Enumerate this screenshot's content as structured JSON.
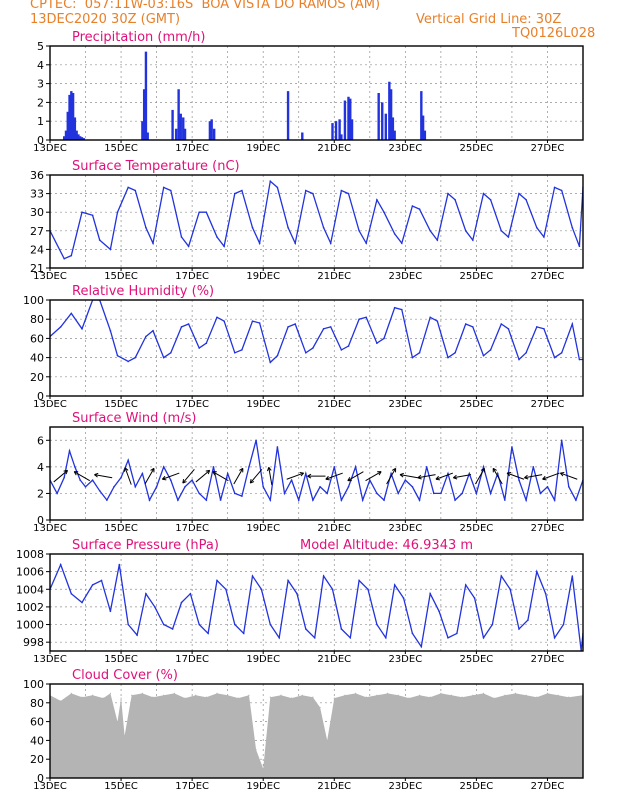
{
  "header": {
    "line1_left": "CPTEC:  057:11W-03:16S  BOA VISTA DO RAMOS (AM)",
    "line2_left": "13DEC2020 30Z (GMT)",
    "line2_right": "Vertical Grid Line: 30Z",
    "line3_right": "TQ0126L028"
  },
  "colors": {
    "header": "#e8802a",
    "title": "#e0117a",
    "line": "#2233dd",
    "cloud": "#b4b4b4"
  },
  "chart_data": [
    {
      "type": "bar",
      "title": "Precipitation (mm/h)",
      "ylim": [
        0,
        5
      ],
      "yticks": [
        "0",
        "1",
        "2",
        "3",
        "4",
        "5"
      ],
      "xticks": [
        "13DEC",
        "15DEC",
        "17DEC",
        "19DEC",
        "21DEC",
        "23DEC",
        "25DEC",
        "27DEC"
      ],
      "x_start": "13DEC2020 06Z",
      "x_end": "28DEC2020 06Z",
      "x": [
        13.4,
        13.45,
        13.5,
        13.55,
        13.6,
        13.65,
        13.7,
        13.75,
        13.8,
        13.85,
        13.9,
        13.95,
        15.6,
        15.65,
        15.7,
        15.75,
        16.45,
        16.55,
        16.62,
        16.68,
        16.75,
        16.8,
        17.5,
        17.55,
        17.62,
        19.7,
        20.1,
        20.95,
        21.05,
        21.15,
        21.2,
        21.3,
        21.4,
        21.45,
        21.5,
        22.25,
        22.35,
        22.45,
        22.55,
        22.6,
        22.65,
        22.7,
        23.45,
        23.5,
        23.55
      ],
      "values": [
        0.2,
        0.5,
        1.5,
        2.4,
        2.6,
        2.5,
        1.2,
        0.5,
        0.3,
        0.2,
        0.15,
        0.1,
        1.0,
        2.7,
        4.7,
        0.4,
        1.6,
        0.6,
        2.7,
        1.4,
        1.2,
        0.6,
        1.0,
        1.1,
        0.6,
        2.6,
        0.4,
        0.9,
        1.0,
        1.1,
        0.3,
        2.1,
        2.3,
        2.2,
        1.1,
        2.5,
        2.0,
        1.4,
        3.1,
        2.7,
        1.2,
        0.5,
        2.6,
        1.3,
        0.5
      ]
    },
    {
      "type": "line",
      "title": "Surface Temperature (nC)",
      "ylim": [
        21,
        36
      ],
      "yticks": [
        "21",
        "24",
        "27",
        "30",
        "33",
        "36"
      ],
      "xticks": [
        "13DEC",
        "15DEC",
        "17DEC",
        "19DEC",
        "21DEC",
        "23DEC",
        "25DEC",
        "27DEC"
      ],
      "x": [
        13.0,
        13.4,
        13.6,
        13.9,
        14.2,
        14.4,
        14.7,
        14.9,
        15.2,
        15.4,
        15.7,
        15.9,
        16.2,
        16.4,
        16.7,
        16.9,
        17.2,
        17.4,
        17.7,
        17.9,
        18.2,
        18.4,
        18.7,
        18.9,
        19.2,
        19.4,
        19.7,
        19.9,
        20.2,
        20.4,
        20.7,
        20.9,
        21.2,
        21.4,
        21.7,
        21.9,
        22.2,
        22.4,
        22.7,
        22.9,
        23.2,
        23.4,
        23.7,
        23.9,
        24.2,
        24.4,
        24.7,
        24.9,
        25.2,
        25.4,
        25.7,
        25.9,
        26.2,
        26.4,
        26.7,
        26.9,
        27.2,
        27.4,
        27.7,
        27.9,
        28.0
      ],
      "values": [
        27.0,
        22.5,
        23.0,
        30.0,
        29.5,
        25.5,
        24.0,
        30.0,
        34.0,
        33.5,
        27.5,
        25.0,
        34.0,
        33.5,
        26.0,
        24.5,
        30.0,
        30.0,
        26.0,
        24.5,
        33.0,
        33.5,
        27.5,
        25.0,
        35.0,
        34.0,
        27.5,
        25.0,
        33.5,
        33.0,
        27.5,
        25.0,
        33.5,
        33.0,
        27.0,
        25.0,
        32.0,
        30.0,
        26.5,
        25.0,
        31.0,
        30.5,
        27.0,
        25.5,
        33.0,
        32.0,
        27.0,
        25.5,
        33.0,
        32.0,
        27.0,
        26.0,
        33.0,
        32.0,
        27.5,
        26.0,
        34.0,
        33.5,
        27.5,
        24.5,
        34.0
      ]
    },
    {
      "type": "line",
      "title": "Relative Humidity (%)",
      "ylim": [
        0,
        100
      ],
      "yticks": [
        "0",
        "20",
        "40",
        "60",
        "80",
        "100"
      ],
      "xticks": [
        "13DEC",
        "15DEC",
        "17DEC",
        "19DEC",
        "21DEC",
        "23DEC",
        "25DEC",
        "27DEC"
      ],
      "x": [
        13.0,
        13.3,
        13.6,
        13.9,
        14.2,
        14.4,
        14.7,
        14.9,
        15.2,
        15.4,
        15.7,
        15.9,
        16.2,
        16.4,
        16.7,
        16.9,
        17.2,
        17.4,
        17.7,
        17.9,
        18.2,
        18.4,
        18.7,
        18.9,
        19.2,
        19.4,
        19.7,
        19.9,
        20.2,
        20.4,
        20.7,
        20.9,
        21.2,
        21.4,
        21.7,
        21.9,
        22.2,
        22.4,
        22.7,
        22.9,
        23.2,
        23.4,
        23.7,
        23.9,
        24.2,
        24.4,
        24.7,
        24.9,
        25.2,
        25.4,
        25.7,
        25.9,
        26.2,
        26.4,
        26.7,
        26.9,
        27.2,
        27.4,
        27.7,
        27.9,
        28.0
      ],
      "values": [
        62,
        72,
        86,
        70,
        100,
        100,
        68,
        42,
        36,
        40,
        62,
        68,
        40,
        45,
        72,
        75,
        50,
        55,
        82,
        78,
        45,
        48,
        78,
        76,
        35,
        42,
        72,
        75,
        45,
        50,
        70,
        72,
        48,
        52,
        80,
        82,
        55,
        60,
        92,
        90,
        40,
        45,
        82,
        78,
        40,
        45,
        75,
        72,
        42,
        48,
        75,
        70,
        38,
        45,
        72,
        70,
        40,
        45,
        75,
        38,
        38
      ]
    },
    {
      "type": "line",
      "title": "Surface Wind (m/s)",
      "ylim": [
        0,
        7
      ],
      "yticks": [
        "0",
        "2",
        "4",
        "6"
      ],
      "xticks": [
        "13DEC",
        "15DEC",
        "17DEC",
        "19DEC",
        "21DEC",
        "23DEC",
        "25DEC",
        "27DEC"
      ],
      "x": [
        13.0,
        13.2,
        13.4,
        13.55,
        13.7,
        13.85,
        14.0,
        14.2,
        14.4,
        14.6,
        14.8,
        15.0,
        15.2,
        15.4,
        15.6,
        15.8,
        16.0,
        16.2,
        16.4,
        16.6,
        16.8,
        17.0,
        17.2,
        17.4,
        17.6,
        17.8,
        18.0,
        18.2,
        18.4,
        18.6,
        18.8,
        19.0,
        19.2,
        19.4,
        19.6,
        19.8,
        20.0,
        20.2,
        20.4,
        20.6,
        20.8,
        21.0,
        21.2,
        21.4,
        21.6,
        21.8,
        22.0,
        22.2,
        22.4,
        22.6,
        22.8,
        23.0,
        23.2,
        23.4,
        23.6,
        23.8,
        24.0,
        24.2,
        24.4,
        24.6,
        24.8,
        25.0,
        25.2,
        25.4,
        25.6,
        25.8,
        26.0,
        26.2,
        26.4,
        26.6,
        26.8,
        27.0,
        27.2,
        27.4,
        27.6,
        27.8,
        28.0
      ],
      "values": [
        3.0,
        2.0,
        3.2,
        5.2,
        4.0,
        3.0,
        2.5,
        3.0,
        2.2,
        1.5,
        2.5,
        3.2,
        4.5,
        2.5,
        3.5,
        1.5,
        2.5,
        4.0,
        3.0,
        1.5,
        2.5,
        3.0,
        2.0,
        1.5,
        4.0,
        1.5,
        3.5,
        2.0,
        1.8,
        4.0,
        6.0,
        2.5,
        1.5,
        5.5,
        2.0,
        3.0,
        1.5,
        3.5,
        1.5,
        2.5,
        2.0,
        4.0,
        1.5,
        2.5,
        4.0,
        1.5,
        3.0,
        2.0,
        1.5,
        3.5,
        2.0,
        3.0,
        2.5,
        1.5,
        4.0,
        2.0,
        2.0,
        3.5,
        1.5,
        2.0,
        3.5,
        2.0,
        4.0,
        2.0,
        3.5,
        1.5,
        5.5,
        3.0,
        1.5,
        4.0,
        2.0,
        2.5,
        1.5,
        6.0,
        2.5,
        1.5,
        3.0
      ],
      "arrows_x": [
        13.3,
        13.9,
        14.5,
        15.2,
        15.8,
        16.4,
        16.9,
        17.3,
        17.8,
        18.3,
        18.8,
        19.2,
        19.9,
        20.5,
        21.0,
        21.6,
        22.1,
        22.6,
        23.1,
        23.6,
        24.1,
        24.6,
        25.1,
        25.6,
        26.1,
        26.6,
        27.1,
        27.6
      ],
      "arrows_dir_deg": [
        40,
        150,
        170,
        110,
        60,
        200,
        230,
        40,
        150,
        60,
        230,
        100,
        20,
        180,
        200,
        210,
        30,
        60,
        170,
        190,
        200,
        190,
        60,
        120,
        160,
        190,
        200,
        160
      ]
    },
    {
      "type": "line",
      "title": "Surface Pressure (hPa)",
      "annotation": "Model Altitude: 46.9343 m",
      "ylim": [
        997,
        1008
      ],
      "yticks": [
        "998",
        "1000",
        "1002",
        "1004",
        "1006",
        "1008"
      ],
      "xticks": [
        "13DEC",
        "15DEC",
        "17DEC",
        "19DEC",
        "21DEC",
        "23DEC",
        "25DEC",
        "27DEC"
      ],
      "x": [
        13.0,
        13.3,
        13.6,
        13.9,
        14.2,
        14.45,
        14.7,
        14.95,
        15.2,
        15.45,
        15.7,
        15.95,
        16.2,
        16.45,
        16.7,
        16.95,
        17.2,
        17.45,
        17.7,
        17.95,
        18.2,
        18.45,
        18.7,
        18.95,
        19.2,
        19.45,
        19.7,
        19.95,
        20.2,
        20.45,
        20.7,
        20.95,
        21.2,
        21.45,
        21.7,
        21.95,
        22.2,
        22.45,
        22.7,
        22.95,
        23.2,
        23.45,
        23.7,
        23.95,
        24.2,
        24.45,
        24.7,
        24.95,
        25.2,
        25.45,
        25.7,
        25.95,
        26.2,
        26.45,
        26.7,
        26.95,
        27.2,
        27.45,
        27.7,
        27.95,
        28.0
      ],
      "values": [
        1004.0,
        1006.8,
        1003.5,
        1002.5,
        1004.5,
        1005.0,
        1001.5,
        1006.8,
        1000.0,
        998.8,
        1003.5,
        1002.0,
        1000.0,
        999.5,
        1002.5,
        1003.5,
        1000.0,
        999.0,
        1005.0,
        1004.0,
        1000.0,
        999.0,
        1005.5,
        1004.0,
        1000.0,
        998.5,
        1005.0,
        1003.5,
        999.5,
        998.5,
        1005.5,
        1004.0,
        999.5,
        998.5,
        1005.0,
        1004.0,
        1000.0,
        998.5,
        1004.5,
        1003.0,
        999.0,
        997.5,
        1003.5,
        1001.5,
        998.5,
        999.0,
        1004.5,
        1003.0,
        998.5,
        1000.0,
        1005.5,
        1004.0,
        999.5,
        1000.5,
        1006.0,
        1003.5,
        998.5,
        1000.0,
        1005.5,
        997.0,
        999.0
      ]
    },
    {
      "type": "area",
      "title": "Cloud Cover (%)",
      "ylim": [
        0,
        100
      ],
      "yticks": [
        "0",
        "20",
        "40",
        "60",
        "80",
        "100"
      ],
      "xticks": [
        "13DEC",
        "15DEC",
        "17DEC",
        "19DEC",
        "21DEC",
        "23DEC",
        "25DEC",
        "27DEC"
      ],
      "x": [
        13.0,
        13.3,
        13.6,
        13.9,
        14.2,
        14.5,
        14.7,
        14.9,
        15.0,
        15.1,
        15.3,
        15.6,
        15.9,
        16.2,
        16.5,
        16.8,
        17.1,
        17.4,
        17.7,
        18.0,
        18.3,
        18.6,
        18.8,
        19.0,
        19.2,
        19.5,
        19.8,
        20.1,
        20.4,
        20.6,
        20.8,
        21.0,
        21.3,
        21.6,
        21.9,
        22.2,
        22.5,
        22.8,
        23.1,
        23.4,
        23.7,
        24.0,
        24.3,
        24.6,
        24.9,
        25.2,
        25.5,
        25.8,
        26.1,
        26.4,
        26.7,
        27.0,
        27.3,
        27.6,
        28.0
      ],
      "values": [
        88,
        82,
        90,
        86,
        88,
        85,
        90,
        60,
        85,
        45,
        88,
        90,
        86,
        88,
        90,
        85,
        88,
        86,
        90,
        88,
        85,
        88,
        30,
        10,
        86,
        88,
        85,
        88,
        86,
        75,
        40,
        85,
        88,
        90,
        86,
        88,
        90,
        88,
        85,
        88,
        86,
        90,
        88,
        86,
        88,
        90,
        85,
        88,
        90,
        88,
        86,
        90,
        88,
        86,
        88
      ]
    }
  ]
}
